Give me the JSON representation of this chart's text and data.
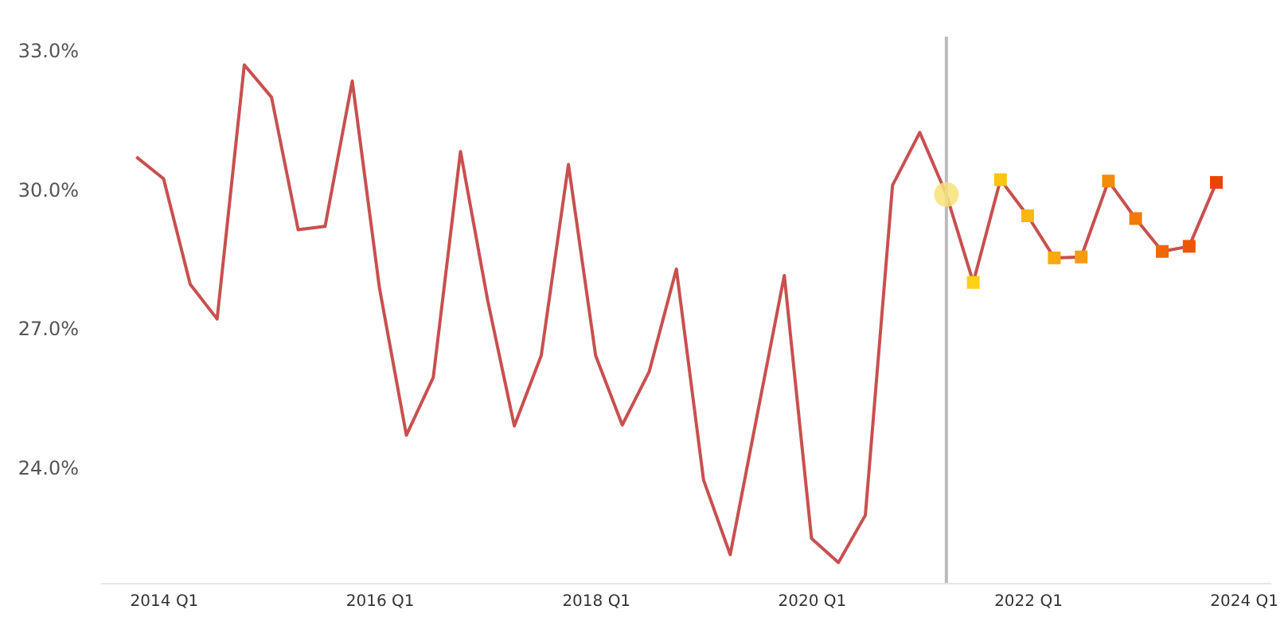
{
  "chart_data": {
    "type": "line",
    "x": [
      "2013-10",
      "2014-01",
      "2014-04",
      "2014-07",
      "2014-10",
      "2015-01",
      "2015-04",
      "2015-07",
      "2015-10",
      "2016-01",
      "2016-04",
      "2016-07",
      "2016-10",
      "2017-01",
      "2017-04",
      "2017-07",
      "2017-10",
      "2018-01",
      "2018-04",
      "2018-07",
      "2018-10",
      "2019-01",
      "2019-04",
      "2019-07",
      "2019-10",
      "2020-01",
      "2020-04",
      "2020-07",
      "2020-10",
      "2021-01",
      "2021-04",
      "2021-07",
      "2021-10",
      "2022-01",
      "2022-04",
      "2022-07",
      "2022-10",
      "2023-01",
      "2023-04",
      "2023-07",
      "2023-10"
    ],
    "series": [
      {
        "type": "line",
        "color": "#c8504f",
        "marker": "none",
        "values": [
          30.7,
          30.23,
          27.95,
          27.2,
          32.69,
          31.99,
          29.13,
          29.2,
          32.34,
          27.87,
          24.69,
          25.94,
          30.82,
          27.6,
          24.89,
          26.41,
          30.54,
          26.41,
          24.91,
          26.06,
          28.28,
          23.72,
          22.11,
          25.12,
          28.14,
          22.46,
          21.94,
          22.96,
          30.09,
          31.23,
          29.89,
          27.99,
          30.21,
          29.43,
          28.52,
          28.54,
          30.18,
          29.37,
          28.66,
          28.77,
          30.15
        ]
      },
      {
        "type": "scatter",
        "marker": "circle",
        "color": "#f7e27a",
        "x": [
          "2021-04"
        ],
        "values": [
          29.89
        ]
      },
      {
        "type": "scatter",
        "marker": "square",
        "x": [
          "2021-07",
          "2021-10",
          "2022-01",
          "2022-04",
          "2022-07",
          "2022-10",
          "2023-01",
          "2023-04",
          "2023-07",
          "2023-10"
        ],
        "values": [
          27.99,
          30.21,
          29.43,
          28.52,
          28.54,
          30.18,
          29.37,
          28.66,
          28.77,
          30.15
        ],
        "colors": [
          "#fcd116",
          "#fbc50f",
          "#f9b810",
          "#f8aa0e",
          "#f69c0c",
          "#f48b0a",
          "#f27a09",
          "#ef6807",
          "#ec5605",
          "#e94404"
        ]
      }
    ],
    "xticks": [
      {
        "value": "2014-01",
        "label": "2014 Q1"
      },
      {
        "value": "2016-01",
        "label": "2016 Q1"
      },
      {
        "value": "2018-01",
        "label": "2018 Q1"
      },
      {
        "value": "2020-01",
        "label": "2020 Q1"
      },
      {
        "value": "2022-01",
        "label": "2022 Q1"
      },
      {
        "value": "2024-01",
        "label": "2024 Q1"
      }
    ],
    "xlim": [
      "2013-06",
      "2024-04"
    ],
    "ylim": [
      21.5,
      33.3
    ],
    "yticks": [
      {
        "value": 24,
        "label": "24.0%"
      },
      {
        "value": 27,
        "label": "27.0%"
      },
      {
        "value": 30,
        "label": "30.0%"
      },
      {
        "value": 33,
        "label": "33.0%"
      }
    ],
    "ref_lines": [
      {
        "axis": "x",
        "value": "2021-04",
        "color": "#bbbbbb"
      }
    ],
    "grid": false
  }
}
